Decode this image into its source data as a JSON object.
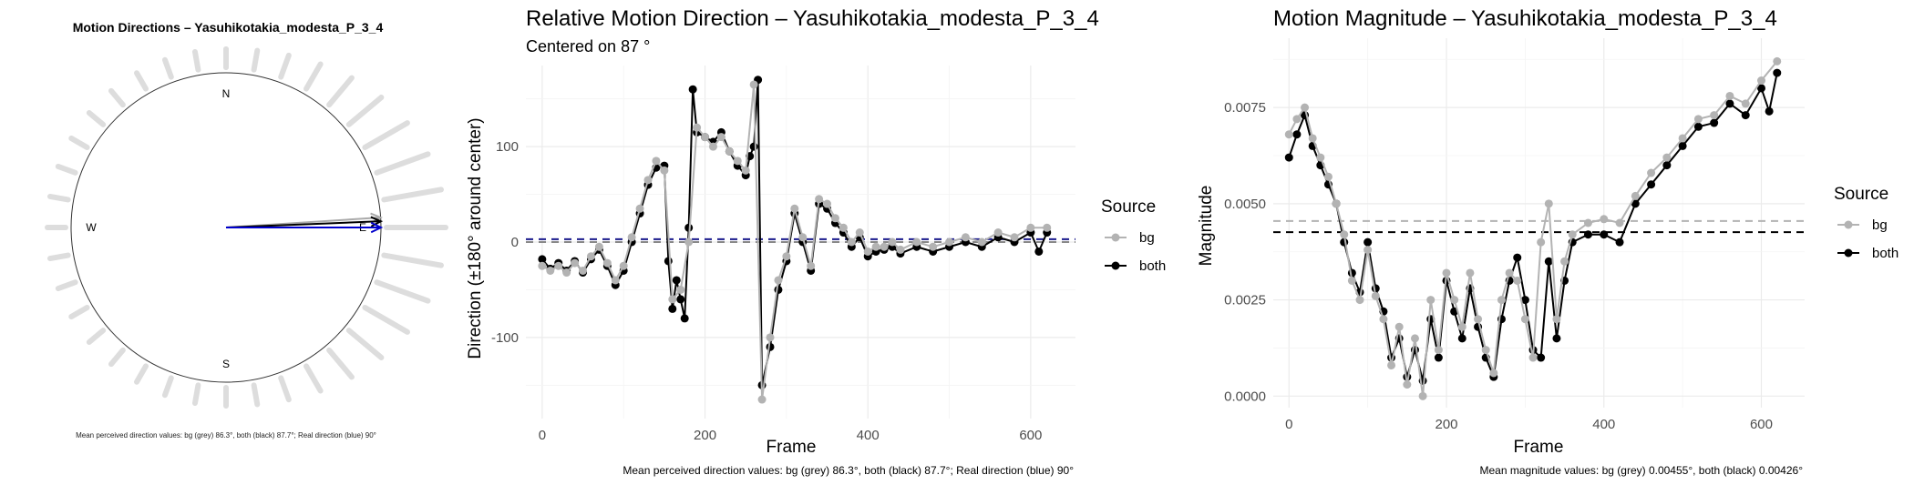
{
  "chart_data": [
    {
      "type": "scatter",
      "subtype": "polar-compass",
      "title": "Motion Directions – Yasuhikotakia_modesta_P_3_4",
      "compass": [
        "N",
        "E",
        "S",
        "W"
      ],
      "caption": "Mean perceived direction values: bg (grey) 86.3°, both (black) 87.7°; Real direction (blue) 90°",
      "arrows_deg": {
        "bg": 86.3,
        "both": 87.7,
        "real": 90
      },
      "colors": {
        "bg": "#aaaaaa",
        "both": "#000000",
        "real": "#0000cc",
        "rays": "#dddddd"
      }
    },
    {
      "type": "line",
      "title": "Relative Motion Direction – Yasuhikotakia_modesta_P_3_4",
      "subtitle": "Centered on  87 °",
      "xlabel": "Frame",
      "ylabel": "Direction (±180° around center)",
      "x_ticks": [
        0,
        200,
        400,
        600
      ],
      "y_ticks": [
        100,
        0,
        -100
      ],
      "xlim": [
        -20,
        655
      ],
      "ylim": [
        -185,
        185
      ],
      "grid": true,
      "legend": {
        "title": "Source",
        "position": "right",
        "items": [
          "bg",
          "both"
        ]
      },
      "caption": "Mean perceived direction values: bg (grey) 86.3°, both (black) 87.7°; Real direction (blue) 90°",
      "reference_lines": {
        "center": 0,
        "real": 3
      },
      "colors": {
        "bg": "#b3b3b3",
        "both": "#000000",
        "real": "#1a1a8c"
      },
      "series": [
        {
          "name": "both",
          "x": [
            0,
            10,
            20,
            30,
            40,
            50,
            60,
            70,
            80,
            90,
            100,
            110,
            120,
            130,
            140,
            150,
            155,
            160,
            165,
            170,
            175,
            180,
            185,
            190,
            200,
            210,
            220,
            230,
            240,
            250,
            255,
            260,
            265,
            270,
            280,
            290,
            300,
            310,
            320,
            330,
            340,
            350,
            360,
            370,
            380,
            390,
            400,
            410,
            420,
            430,
            440,
            460,
            480,
            500,
            520,
            540,
            560,
            580,
            600,
            610,
            620
          ],
          "y": [
            -18,
            -28,
            -22,
            -30,
            -20,
            -32,
            -18,
            -8,
            -25,
            -45,
            -30,
            0,
            30,
            60,
            78,
            80,
            -20,
            -70,
            -40,
            -60,
            -80,
            15,
            160,
            115,
            110,
            105,
            115,
            95,
            80,
            70,
            90,
            100,
            170,
            -150,
            -110,
            -50,
            -20,
            30,
            0,
            -30,
            40,
            35,
            20,
            10,
            -5,
            5,
            -15,
            -10,
            -8,
            -5,
            -12,
            -5,
            -10,
            -5,
            0,
            -5,
            5,
            0,
            10,
            -10,
            10
          ]
        },
        {
          "name": "bg",
          "x": [
            0,
            10,
            20,
            30,
            40,
            50,
            60,
            70,
            80,
            90,
            100,
            110,
            120,
            130,
            140,
            150,
            160,
            170,
            180,
            190,
            200,
            210,
            220,
            230,
            240,
            250,
            260,
            270,
            280,
            290,
            300,
            310,
            320,
            330,
            340,
            350,
            360,
            370,
            380,
            390,
            400,
            410,
            420,
            430,
            440,
            460,
            480,
            500,
            520,
            540,
            560,
            580,
            600,
            620
          ],
          "y": [
            -25,
            -30,
            -25,
            -32,
            -22,
            -30,
            -15,
            -5,
            -22,
            -40,
            -25,
            5,
            35,
            65,
            85,
            75,
            -60,
            -50,
            0,
            120,
            110,
            100,
            110,
            95,
            85,
            75,
            165,
            -165,
            -100,
            -40,
            -15,
            35,
            5,
            -25,
            45,
            40,
            25,
            15,
            0,
            10,
            -10,
            -5,
            -5,
            0,
            -8,
            0,
            -5,
            0,
            5,
            0,
            10,
            5,
            15,
            15
          ]
        }
      ]
    },
    {
      "type": "line",
      "title": "Motion Magnitude – Yasuhikotakia_modesta_P_3_4",
      "xlabel": "Frame",
      "ylabel": "Magnitude",
      "x_ticks": [
        0,
        200,
        400,
        600
      ],
      "y_ticks": [
        "0.0000",
        "0.0025",
        "0.0050",
        "0.0075"
      ],
      "xlim": [
        -20,
        655
      ],
      "ylim": [
        -0.0003,
        0.0093
      ],
      "grid": true,
      "legend": {
        "title": "Source",
        "position": "right",
        "items": [
          "bg",
          "both"
        ]
      },
      "caption": "Mean magnitude values: bg (grey) 0.00455°, both (black) 0.00426°",
      "reference_lines": {
        "bg": 0.00455,
        "both": 0.00426
      },
      "colors": {
        "bg": "#b3b3b3",
        "both": "#000000"
      },
      "series": [
        {
          "name": "both",
          "x": [
            0,
            10,
            20,
            30,
            40,
            50,
            60,
            70,
            80,
            90,
            100,
            110,
            120,
            130,
            140,
            150,
            160,
            170,
            180,
            190,
            200,
            210,
            220,
            230,
            240,
            250,
            260,
            270,
            280,
            290,
            300,
            310,
            320,
            330,
            340,
            350,
            360,
            380,
            400,
            420,
            440,
            460,
            480,
            500,
            520,
            540,
            560,
            580,
            600,
            610,
            620
          ],
          "y": [
            0.0062,
            0.0068,
            0.0073,
            0.0065,
            0.006,
            0.0055,
            0.005,
            0.004,
            0.0032,
            0.0027,
            0.004,
            0.0028,
            0.0022,
            0.001,
            0.0015,
            0.0005,
            0.0012,
            0.0004,
            0.002,
            0.001,
            0.003,
            0.0022,
            0.0015,
            0.0028,
            0.0018,
            0.001,
            0.0005,
            0.002,
            0.003,
            0.0036,
            0.0025,
            0.0012,
            0.001,
            0.0035,
            0.0015,
            0.003,
            0.004,
            0.0042,
            0.0042,
            0.004,
            0.005,
            0.0055,
            0.006,
            0.0065,
            0.007,
            0.0071,
            0.0076,
            0.0073,
            0.008,
            0.0074,
            0.0084
          ]
        },
        {
          "name": "bg",
          "x": [
            0,
            10,
            20,
            30,
            40,
            50,
            60,
            70,
            80,
            90,
            100,
            110,
            120,
            130,
            140,
            150,
            160,
            170,
            180,
            190,
            200,
            210,
            220,
            230,
            240,
            250,
            260,
            270,
            280,
            290,
            300,
            310,
            320,
            330,
            340,
            350,
            360,
            380,
            400,
            420,
            440,
            460,
            480,
            500,
            520,
            540,
            560,
            580,
            600,
            620
          ],
          "y": [
            0.0068,
            0.0072,
            0.0075,
            0.0067,
            0.0062,
            0.0057,
            0.005,
            0.0042,
            0.003,
            0.0025,
            0.0038,
            0.0026,
            0.002,
            0.0008,
            0.0018,
            0.0003,
            0.0015,
            0.0,
            0.0025,
            0.0012,
            0.0032,
            0.0025,
            0.0018,
            0.0032,
            0.002,
            0.0012,
            0.0006,
            0.0025,
            0.0032,
            0.003,
            0.002,
            0.001,
            0.004,
            0.005,
            0.002,
            0.0035,
            0.0042,
            0.0045,
            0.0046,
            0.0045,
            0.0052,
            0.0058,
            0.0062,
            0.0067,
            0.0072,
            0.0073,
            0.0078,
            0.0076,
            0.0082,
            0.0087
          ]
        }
      ]
    }
  ]
}
